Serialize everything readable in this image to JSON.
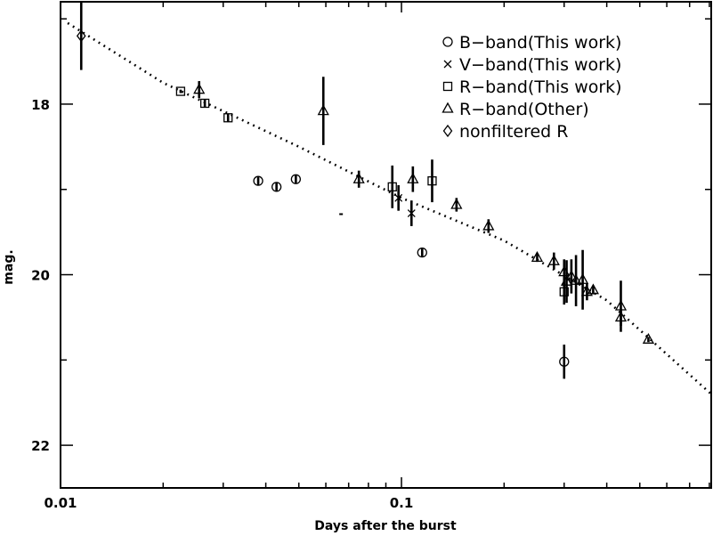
{
  "chart_data": {
    "type": "scatter",
    "title": "",
    "xlabel": "Days after the burst",
    "ylabel": "mag.",
    "xscale": "log",
    "xlim": [
      0.01,
      0.81
    ],
    "ylim": [
      16.8,
      22.5
    ],
    "y_inverted": true,
    "grid": false,
    "legend_placement": "top-right",
    "x_ticks": [
      {
        "value": 0.01,
        "label": "0.01"
      },
      {
        "value": 0.1,
        "label": "0.1"
      }
    ],
    "y_ticks": [
      {
        "value": 18,
        "label": "18"
      },
      {
        "value": 20,
        "label": "20"
      },
      {
        "value": 22,
        "label": "22"
      }
    ],
    "series": [
      {
        "name": "B−band(This work)",
        "marker": "circle",
        "points": [
          {
            "x": 0.038,
            "y": 18.9,
            "err": 0.05
          },
          {
            "x": 0.043,
            "y": 18.97,
            "err": 0.05
          },
          {
            "x": 0.049,
            "y": 18.88,
            "err": 0.05
          },
          {
            "x": 0.115,
            "y": 19.74,
            "err": 0.05
          },
          {
            "x": 0.3,
            "y": 21.02,
            "err": 0.2
          }
        ]
      },
      {
        "name": "V−band(This work)",
        "marker": "x",
        "points": [
          {
            "x": 0.098,
            "y": 19.1,
            "err": 0.15
          },
          {
            "x": 0.107,
            "y": 19.28,
            "err": 0.15
          }
        ]
      },
      {
        "name": "R−band(This work)",
        "marker": "square",
        "points": [
          {
            "x": 0.0225,
            "y": 17.85,
            "err": 0.02
          },
          {
            "x": 0.0265,
            "y": 17.99,
            "err": 0.05
          },
          {
            "x": 0.031,
            "y": 18.16,
            "err": 0.05
          },
          {
            "x": 0.094,
            "y": 18.97,
            "err": 0.25
          },
          {
            "x": 0.123,
            "y": 18.9,
            "err": 0.25
          },
          {
            "x": 0.3,
            "y": 20.2,
            "err": 0.15
          }
        ]
      },
      {
        "name": "R−band(Other)",
        "marker": "triangle",
        "points": [
          {
            "x": 0.0255,
            "y": 17.83,
            "err": 0.1
          },
          {
            "x": 0.059,
            "y": 18.08,
            "err": 0.4
          },
          {
            "x": 0.075,
            "y": 18.88,
            "err": 0.1
          },
          {
            "x": 0.108,
            "y": 18.88,
            "err": 0.15
          },
          {
            "x": 0.145,
            "y": 19.18,
            "err": 0.08
          },
          {
            "x": 0.18,
            "y": 19.43,
            "err": 0.08
          },
          {
            "x": 0.25,
            "y": 19.8,
            "err": 0.05
          },
          {
            "x": 0.28,
            "y": 19.84,
            "err": 0.1
          },
          {
            "x": 0.3,
            "y": 19.97,
            "err": 0.15
          },
          {
            "x": 0.305,
            "y": 20.08,
            "err": 0.25
          },
          {
            "x": 0.315,
            "y": 20.02,
            "err": 0.2
          },
          {
            "x": 0.325,
            "y": 20.07,
            "err": 0.3
          },
          {
            "x": 0.34,
            "y": 20.06,
            "err": 0.35
          },
          {
            "x": 0.35,
            "y": 20.2,
            "err": 0.1
          },
          {
            "x": 0.365,
            "y": 20.18,
            "err": 0.05
          },
          {
            "x": 0.44,
            "y": 20.37,
            "err": 0.3
          },
          {
            "x": 0.44,
            "y": 20.5,
            "err": 0.1
          },
          {
            "x": 0.53,
            "y": 20.76,
            "err": 0.03
          }
        ]
      },
      {
        "name": "nonfiltered R",
        "marker": "diamond",
        "points": [
          {
            "x": 0.0115,
            "y": 17.2,
            "err": 0.4
          }
        ]
      }
    ],
    "fit_line": {
      "style": "dotted",
      "points": [
        [
          0.0105,
          17.05
        ],
        [
          0.02,
          17.75
        ],
        [
          0.05,
          18.5
        ],
        [
          0.1,
          19.1
        ],
        [
          0.2,
          19.6
        ],
        [
          0.4,
          20.3
        ],
        [
          0.81,
          21.4
        ]
      ]
    },
    "stray_marks": [
      {
        "x": 0.0665,
        "y": 19.29
      }
    ]
  }
}
